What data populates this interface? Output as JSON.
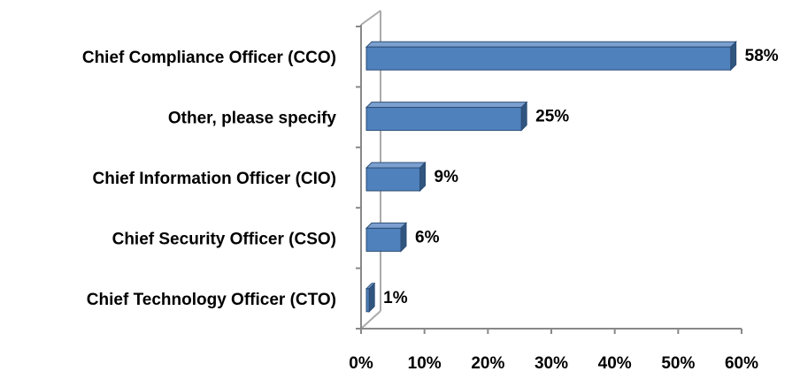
{
  "chart_data": {
    "type": "bar",
    "orientation": "horizontal",
    "categories": [
      "Chief Compliance Officer (CCO)",
      "Other, please specify",
      "Chief Information Officer (CIO)",
      "Chief Security Officer (CSO)",
      "Chief Technology Officer (CTO)"
    ],
    "values": [
      58,
      25,
      9,
      6,
      1
    ],
    "value_labels": [
      "58%",
      "25%",
      "9%",
      "6%",
      "1%"
    ],
    "color": "#4f81bd",
    "xlim": [
      0,
      60
    ],
    "xticks": [
      {
        "value": 0,
        "label": "0%"
      },
      {
        "value": 10,
        "label": "10%"
      },
      {
        "value": 20,
        "label": "20%"
      },
      {
        "value": 30,
        "label": "30%"
      },
      {
        "value": 40,
        "label": "40%"
      },
      {
        "value": 50,
        "label": "50%"
      },
      {
        "value": 60,
        "label": "60%"
      }
    ]
  }
}
